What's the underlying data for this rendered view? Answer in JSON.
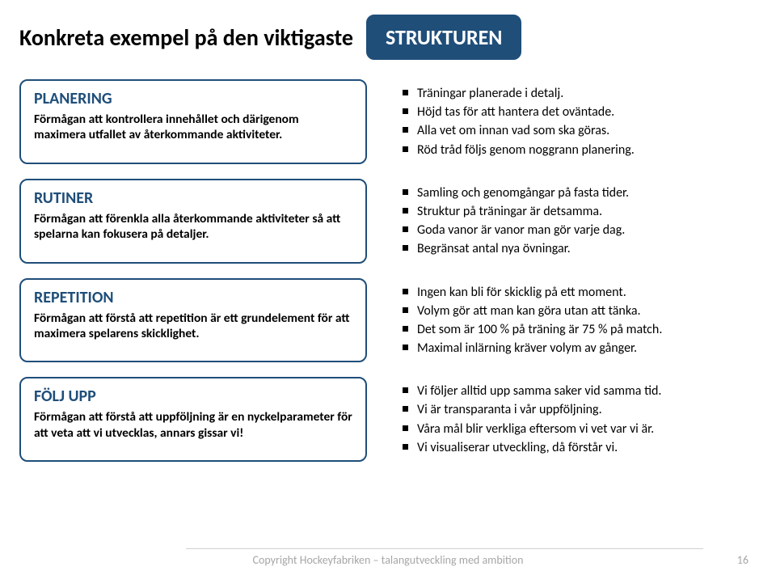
{
  "colors": {
    "accent": "#1f4e79",
    "text": "#000000",
    "footer": "#a6a6a6",
    "background": "#ffffff",
    "card_border": "#1f4e79"
  },
  "typography": {
    "font_family": "Calibri",
    "title_fontsize": 28,
    "badge_fontsize": 26,
    "card_title_fontsize": 20,
    "card_desc_fontsize": 15.5,
    "bullet_fontsize": 16,
    "footer_fontsize": 14
  },
  "header": {
    "title": "Konkreta exempel på den viktigaste",
    "badge": "STRUKTUREN"
  },
  "cards": [
    {
      "title": "PLANERING",
      "desc": "Förmågan att kontrollera innehållet och därigenom maximera utfallet av återkommande aktiviteter.",
      "bullets": [
        "Träningar planerade i detalj.",
        "Höjd tas för att hantera det oväntade.",
        "Alla vet om innan vad som ska göras.",
        "Röd tråd följs genom noggrann planering."
      ]
    },
    {
      "title": "RUTINER",
      "desc": "Förmågan att förenkla alla återkommande aktiviteter så att spelarna kan fokusera på detaljer.",
      "bullets": [
        "Samling och genomgångar på fasta tider.",
        "Struktur på träningar är detsamma.",
        "Goda vanor är vanor man gör varje dag.",
        "Begränsat antal nya övningar."
      ]
    },
    {
      "title": "REPETITION",
      "desc": "Förmågan att förstå att repetition är ett grundelement för att maximera spelarens skicklighet.",
      "bullets": [
        "Ingen kan bli för skicklig på ett moment.",
        "Volym gör att man kan göra utan att tänka.",
        "Det som är 100 % på träning är 75 % på match.",
        "Maximal inlärning kräver volym av gånger."
      ]
    },
    {
      "title": "FÖLJ UPP",
      "desc": "Förmågan att förstå att uppföljning är en nyckelparameter för att veta att vi utvecklas, annars gissar vi!",
      "bullets": [
        "Vi följer alltid upp samma saker vid samma tid.",
        "Vi är transparanta i vår uppföljning.",
        "Våra mål blir verkliga eftersom vi vet var vi är.",
        "Vi visualiserar utveckling, då förstår vi."
      ]
    }
  ],
  "footer": {
    "text": "Copyright Hockeyfabriken – talangutveckling med ambition",
    "page": "16"
  }
}
